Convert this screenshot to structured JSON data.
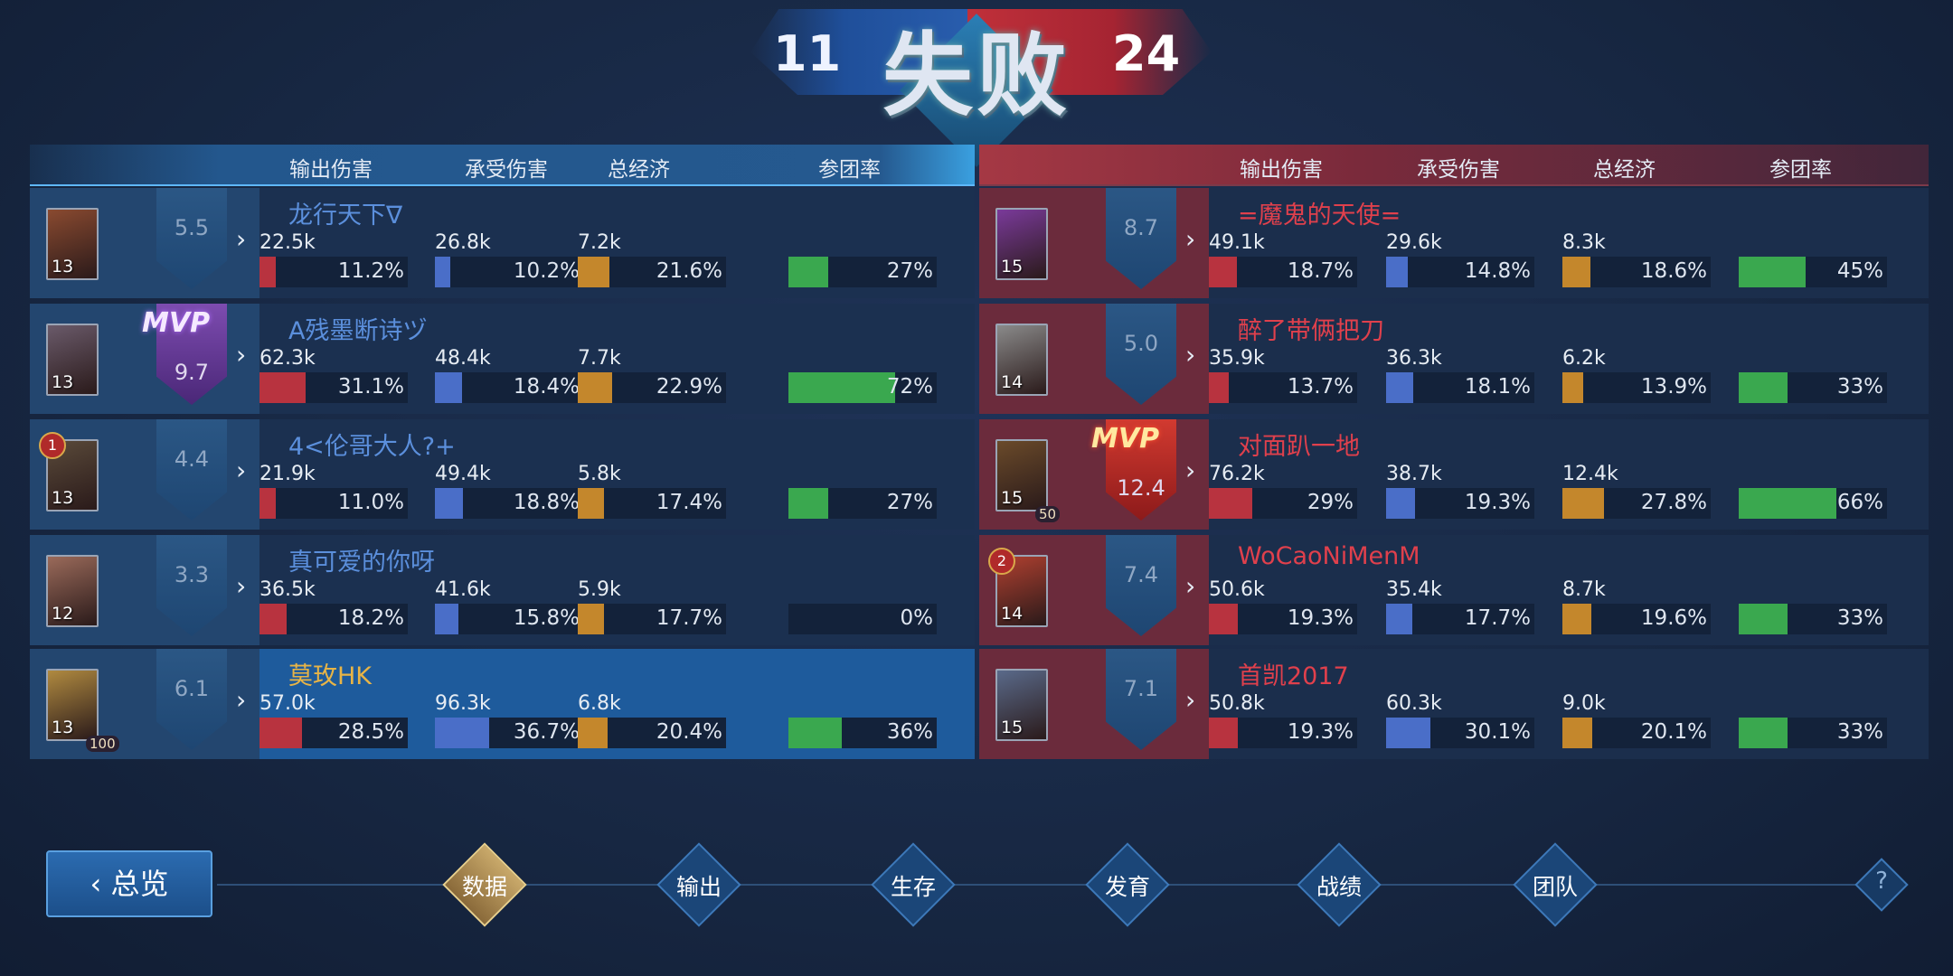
{
  "header": {
    "result": "失败",
    "score_blue": "11",
    "score_red": "24"
  },
  "columns": [
    "输出伤害",
    "承受伤害",
    "总经济",
    "参团率"
  ],
  "colors": {
    "damage": "#b8333f",
    "taken": "#4a6ec8",
    "gold": "#c4872c",
    "participation": "#3aa84f"
  },
  "blue_team": [
    {
      "name": "龙行天下∇",
      "level": "13",
      "score": "5.5",
      "mvp": false,
      "rank": null,
      "mark": null,
      "highlight": false,
      "avatar": "#8a4a30",
      "stats": [
        {
          "value": "22.5k",
          "pct": "11.2%",
          "fill": 11.2
        },
        {
          "value": "26.8k",
          "pct": "10.2%",
          "fill": 10.2
        },
        {
          "value": "7.2k",
          "pct": "21.6%",
          "fill": 21.6
        },
        {
          "value": "",
          "pct": "27%",
          "fill": 27
        }
      ]
    },
    {
      "name": "A残墨断诗ヅ",
      "level": "13",
      "score": "9.7",
      "mvp": true,
      "mvp_label": "MVP",
      "rank": null,
      "mark": null,
      "highlight": false,
      "avatar": "#6a5a6a",
      "stats": [
        {
          "value": "62.3k",
          "pct": "31.1%",
          "fill": 31.1
        },
        {
          "value": "48.4k",
          "pct": "18.4%",
          "fill": 18.4
        },
        {
          "value": "7.7k",
          "pct": "22.9%",
          "fill": 22.9
        },
        {
          "value": "",
          "pct": "72%",
          "fill": 72
        }
      ]
    },
    {
      "name": "4<伦哥大人?+",
      "level": "13",
      "score": "4.4",
      "mvp": false,
      "rank": "1",
      "mark": null,
      "highlight": false,
      "avatar": "#5a4a3a",
      "stats": [
        {
          "value": "21.9k",
          "pct": "11.0%",
          "fill": 11.0
        },
        {
          "value": "49.4k",
          "pct": "18.8%",
          "fill": 18.8
        },
        {
          "value": "5.8k",
          "pct": "17.4%",
          "fill": 17.4
        },
        {
          "value": "",
          "pct": "27%",
          "fill": 27
        }
      ]
    },
    {
      "name": "真可爱的你呀",
      "level": "12",
      "score": "3.3",
      "mvp": false,
      "rank": null,
      "mark": null,
      "highlight": false,
      "avatar": "#9a6a5a",
      "stats": [
        {
          "value": "36.5k",
          "pct": "18.2%",
          "fill": 18.2
        },
        {
          "value": "41.6k",
          "pct": "15.8%",
          "fill": 15.8
        },
        {
          "value": "5.9k",
          "pct": "17.7%",
          "fill": 17.7
        },
        {
          "value": "",
          "pct": "0%",
          "fill": 0
        }
      ]
    },
    {
      "name": "莫玫HK",
      "level": "13",
      "score": "6.1",
      "mvp": false,
      "rank": null,
      "mark": "100",
      "highlight": true,
      "avatar": "#b08a40",
      "stats": [
        {
          "value": "57.0k",
          "pct": "28.5%",
          "fill": 28.5
        },
        {
          "value": "96.3k",
          "pct": "36.7%",
          "fill": 36.7
        },
        {
          "value": "6.8k",
          "pct": "20.4%",
          "fill": 20.4
        },
        {
          "value": "",
          "pct": "36%",
          "fill": 36
        }
      ]
    }
  ],
  "red_team": [
    {
      "name": "=魔鬼的天使=",
      "level": "15",
      "score": "8.7",
      "mvp": false,
      "rank": null,
      "mark": null,
      "highlight": false,
      "avatar": "#7a3a9a",
      "stats": [
        {
          "value": "49.1k",
          "pct": "18.7%",
          "fill": 18.7
        },
        {
          "value": "29.6k",
          "pct": "14.8%",
          "fill": 14.8
        },
        {
          "value": "8.3k",
          "pct": "18.6%",
          "fill": 18.6
        },
        {
          "value": "",
          "pct": "45%",
          "fill": 45
        }
      ]
    },
    {
      "name": "醉了带俩把刀",
      "level": "14",
      "score": "5.0",
      "mvp": false,
      "rank": null,
      "mark": null,
      "highlight": false,
      "avatar": "#8a8a8a",
      "stats": [
        {
          "value": "35.9k",
          "pct": "13.7%",
          "fill": 13.7
        },
        {
          "value": "36.3k",
          "pct": "18.1%",
          "fill": 18.1
        },
        {
          "value": "6.2k",
          "pct": "13.9%",
          "fill": 13.9
        },
        {
          "value": "",
          "pct": "33%",
          "fill": 33
        }
      ]
    },
    {
      "name": "对面趴一地",
      "level": "15",
      "score": "12.4",
      "mvp": true,
      "mvp_label": "MVP",
      "rank": null,
      "mark": "50",
      "highlight": false,
      "avatar": "#6a4a2a",
      "stats": [
        {
          "value": "76.2k",
          "pct": "29%",
          "fill": 29
        },
        {
          "value": "38.7k",
          "pct": "19.3%",
          "fill": 19.3
        },
        {
          "value": "12.4k",
          "pct": "27.8%",
          "fill": 27.8
        },
        {
          "value": "",
          "pct": "66%",
          "fill": 66
        }
      ]
    },
    {
      "name": "WoCaoNiMenM",
      "level": "14",
      "score": "7.4",
      "mvp": false,
      "rank": "2",
      "mark": null,
      "highlight": false,
      "avatar": "#b04030",
      "stats": [
        {
          "value": "50.6k",
          "pct": "19.3%",
          "fill": 19.3
        },
        {
          "value": "35.4k",
          "pct": "17.7%",
          "fill": 17.7
        },
        {
          "value": "8.7k",
          "pct": "19.6%",
          "fill": 19.6
        },
        {
          "value": "",
          "pct": "33%",
          "fill": 33
        }
      ]
    },
    {
      "name": "首凯2017",
      "level": "15",
      "score": "7.1",
      "mvp": false,
      "rank": null,
      "mark": null,
      "highlight": false,
      "avatar": "#5a6a8a",
      "stats": [
        {
          "value": "50.8k",
          "pct": "19.3%",
          "fill": 19.3
        },
        {
          "value": "60.3k",
          "pct": "30.1%",
          "fill": 30.1
        },
        {
          "value": "9.0k",
          "pct": "20.1%",
          "fill": 20.1
        },
        {
          "value": "",
          "pct": "33%",
          "fill": 33
        }
      ]
    }
  ],
  "nav": {
    "back_label": "总览",
    "back_icon": "chevron-left-icon",
    "tabs": [
      {
        "label": "数据",
        "active": true
      },
      {
        "label": "输出",
        "active": false
      },
      {
        "label": "生存",
        "active": false
      },
      {
        "label": "发育",
        "active": false
      },
      {
        "label": "战绩",
        "active": false
      },
      {
        "label": "团队",
        "active": false
      }
    ],
    "help": "?"
  }
}
